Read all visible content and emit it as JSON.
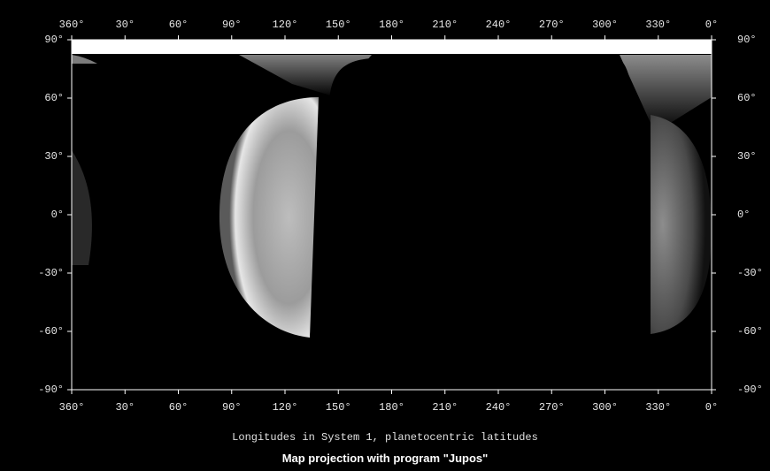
{
  "map": {
    "top_longitude_labels": [
      "360°",
      "30°",
      "60°",
      "90°",
      "120°",
      "150°",
      "180°",
      "210°",
      "240°",
      "270°",
      "300°",
      "330°",
      "0°"
    ],
    "bottom_longitude_labels": [
      "360°",
      "30°",
      "60°",
      "90°",
      "120°",
      "150°",
      "180°",
      "210°",
      "240°",
      "270°",
      "300°",
      "330°",
      "0°"
    ],
    "left_latitude_labels": [
      "90°",
      "60°",
      "30°",
      "0°",
      "-30°",
      "-60°",
      "-90°"
    ],
    "right_latitude_labels": [
      "90°",
      "60°",
      "30°",
      "0°",
      "-30°",
      "-60°",
      "-90°"
    ],
    "longitude_range": [
      360,
      0
    ],
    "latitude_range": [
      90,
      -90
    ],
    "captions": {
      "line1": "Longitudes in System 1, planetocentric latitudes",
      "line2": "Map projection with program \"Jupos\""
    },
    "colors": {
      "background": "#000000",
      "axis": "#ffffff",
      "planet_light": "#d9d9d9",
      "planet_dark": "#5a5a5a"
    }
  }
}
